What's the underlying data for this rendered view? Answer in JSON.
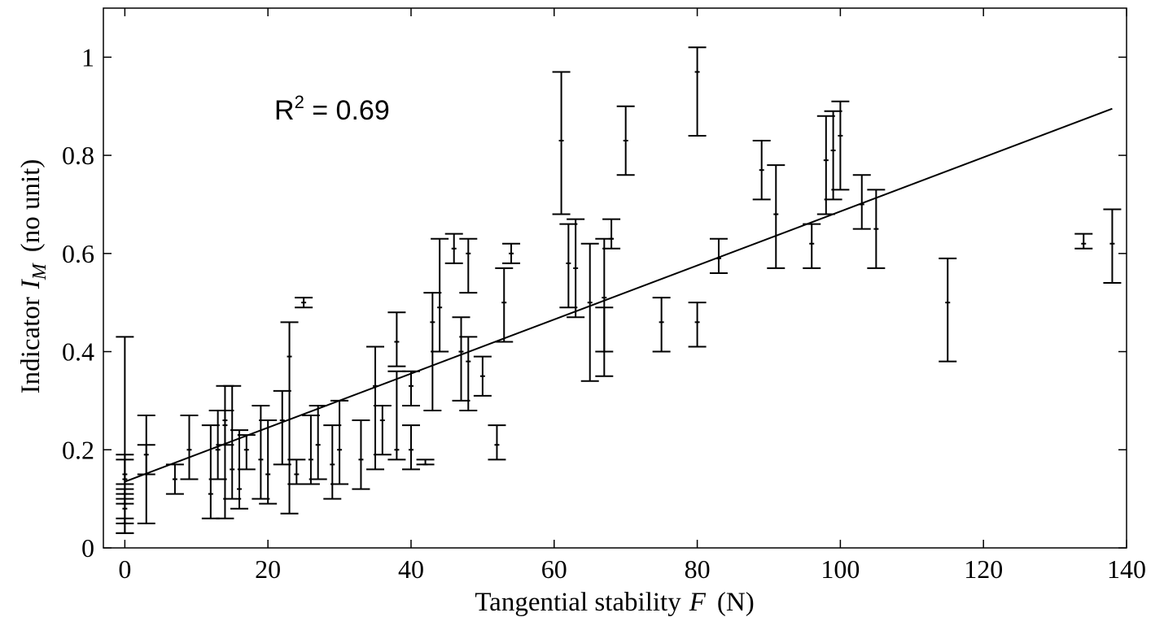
{
  "chart_data": {
    "type": "scatter",
    "title": "",
    "xlabel": {
      "prefix": "Tangential stability",
      "symbol": "F",
      "unit": "(N)"
    },
    "ylabel": {
      "prefix": "Indicator",
      "symbol": "I",
      "subscript": "M",
      "unit": "(no unit)"
    },
    "xlim": [
      -3,
      140
    ],
    "ylim": [
      0,
      1.1
    ],
    "xticks": [
      "0",
      "20",
      "40",
      "60",
      "80",
      "100",
      "120",
      "140"
    ],
    "yticks": [
      "0",
      "0.2",
      "0.4",
      "0.6",
      "0.8",
      "1"
    ],
    "annotation": {
      "base": "R",
      "sup": "2",
      "rest": " = 0.69"
    },
    "fit_line": {
      "x": [
        0,
        138
      ],
      "y": [
        0.135,
        0.895
      ]
    },
    "grid": false,
    "series": [
      {
        "points": [
          [
            0,
            0.08,
            0.03,
            0.43
          ],
          [
            0,
            0.05,
            0.03,
            0.06
          ],
          [
            0,
            0.09,
            0.05,
            0.11
          ],
          [
            0,
            0.14,
            0.1,
            0.19
          ],
          [
            0,
            0.15,
            0.13,
            0.18
          ],
          [
            0,
            0.11,
            0.09,
            0.12
          ],
          [
            3,
            0.15,
            0.05,
            0.27
          ],
          [
            3,
            0.19,
            0.15,
            0.21
          ],
          [
            7,
            0.14,
            0.11,
            0.17
          ],
          [
            9,
            0.2,
            0.14,
            0.27
          ],
          [
            12,
            0.11,
            0.06,
            0.25
          ],
          [
            13,
            0.2,
            0.14,
            0.28
          ],
          [
            14,
            0.25,
            0.21,
            0.28
          ],
          [
            14,
            0.26,
            0.06,
            0.33
          ],
          [
            15,
            0.16,
            0.1,
            0.33
          ],
          [
            16,
            0.12,
            0.08,
            0.24
          ],
          [
            17,
            0.2,
            0.16,
            0.23
          ],
          [
            19,
            0.18,
            0.1,
            0.29
          ],
          [
            20,
            0.15,
            0.09,
            0.26
          ],
          [
            22,
            0.26,
            0.17,
            0.32
          ],
          [
            23,
            0.39,
            0.07,
            0.46
          ],
          [
            24,
            0.15,
            0.13,
            0.18
          ],
          [
            25,
            0.5,
            0.49,
            0.51
          ],
          [
            26,
            0.18,
            0.13,
            0.27
          ],
          [
            27,
            0.21,
            0.14,
            0.29
          ],
          [
            29,
            0.17,
            0.1,
            0.25
          ],
          [
            30,
            0.2,
            0.13,
            0.3
          ],
          [
            33,
            0.18,
            0.12,
            0.26
          ],
          [
            35,
            0.33,
            0.16,
            0.41
          ],
          [
            36,
            0.26,
            0.19,
            0.29
          ],
          [
            38,
            0.2,
            0.18,
            0.36
          ],
          [
            38,
            0.42,
            0.37,
            0.48
          ],
          [
            40,
            0.33,
            0.29,
            0.36
          ],
          [
            40,
            0.2,
            0.16,
            0.25
          ],
          [
            42,
            0.17,
            0.17,
            0.18
          ],
          [
            43,
            0.46,
            0.28,
            0.52
          ],
          [
            44,
            0.49,
            0.4,
            0.63
          ],
          [
            46,
            0.61,
            0.58,
            0.64
          ],
          [
            47,
            0.4,
            0.3,
            0.47
          ],
          [
            48,
            0.38,
            0.28,
            0.43
          ],
          [
            48,
            0.6,
            0.52,
            0.63
          ],
          [
            50,
            0.35,
            0.31,
            0.39
          ],
          [
            52,
            0.21,
            0.18,
            0.25
          ],
          [
            53,
            0.5,
            0.42,
            0.57
          ],
          [
            54,
            0.6,
            0.58,
            0.62
          ],
          [
            61,
            0.83,
            0.68,
            0.97
          ],
          [
            62,
            0.58,
            0.49,
            0.66
          ],
          [
            63,
            0.57,
            0.47,
            0.67
          ],
          [
            65,
            0.5,
            0.34,
            0.62
          ],
          [
            67,
            0.51,
            0.35,
            0.63
          ],
          [
            67,
            0.4,
            0.4,
            0.49
          ],
          [
            68,
            0.63,
            0.61,
            0.67
          ],
          [
            70,
            0.83,
            0.76,
            0.9
          ],
          [
            75,
            0.46,
            0.4,
            0.51
          ],
          [
            80,
            0.97,
            0.84,
            1.02
          ],
          [
            80,
            0.46,
            0.41,
            0.5
          ],
          [
            83,
            0.59,
            0.56,
            0.63
          ],
          [
            89,
            0.77,
            0.71,
            0.83
          ],
          [
            91,
            0.68,
            0.57,
            0.78
          ],
          [
            96,
            0.62,
            0.57,
            0.66
          ],
          [
            98,
            0.79,
            0.68,
            0.88
          ],
          [
            99,
            0.81,
            0.71,
            0.89
          ],
          [
            100,
            0.84,
            0.73,
            0.91
          ],
          [
            103,
            0.7,
            0.65,
            0.76
          ],
          [
            105,
            0.65,
            0.57,
            0.73
          ],
          [
            115,
            0.5,
            0.38,
            0.59
          ],
          [
            134,
            0.62,
            0.61,
            0.64
          ],
          [
            138,
            0.62,
            0.54,
            0.69
          ]
        ]
      }
    ]
  }
}
